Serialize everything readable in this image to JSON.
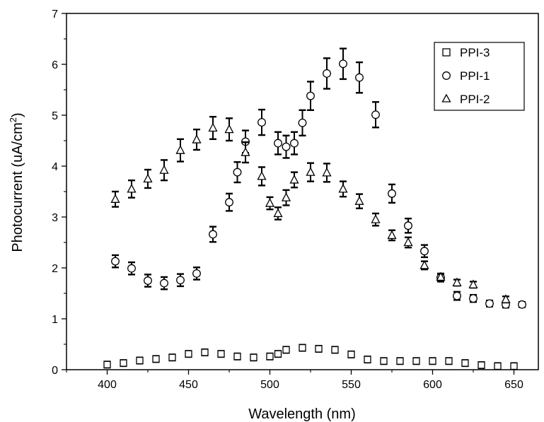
{
  "chart_data": {
    "type": "scatter",
    "xlabel": "Wavelength (nm)",
    "ylabel": "Photocurrent (uA/cm²)",
    "ylabel_parts": {
      "main": "Photocurrent (uA/cm",
      "sup": "2",
      "end": ")"
    },
    "xlim": [
      375,
      665
    ],
    "ylim": [
      0,
      7
    ],
    "xticks": [
      400,
      450,
      500,
      550,
      600,
      650
    ],
    "yticks": [
      0,
      1,
      2,
      3,
      4,
      5,
      6,
      7
    ],
    "xtick_labels": [
      "400",
      "450",
      "500",
      "550",
      "600",
      "650"
    ],
    "ytick_labels": [
      "0",
      "1",
      "2",
      "3",
      "4",
      "5",
      "6",
      "7"
    ],
    "grid": false,
    "legend_position": "top-right",
    "series": [
      {
        "name": "PPI-3",
        "marker": "square",
        "x": [
          400,
          410,
          420,
          430,
          440,
          450,
          460,
          470,
          480,
          490,
          500,
          505,
          510,
          520,
          530,
          540,
          550,
          560,
          570,
          580,
          590,
          600,
          610,
          620,
          630,
          640,
          650
        ],
        "y": [
          0.1,
          0.13,
          0.18,
          0.21,
          0.24,
          0.31,
          0.34,
          0.31,
          0.26,
          0.24,
          0.26,
          0.31,
          0.39,
          0.43,
          0.41,
          0.39,
          0.3,
          0.2,
          0.17,
          0.17,
          0.17,
          0.17,
          0.17,
          0.13,
          0.09,
          0.07,
          0.07
        ],
        "err": [
          0.06,
          0.06,
          0.06,
          0.06,
          0.06,
          0.06,
          0.06,
          0.06,
          0.06,
          0.06,
          0.06,
          0.06,
          0.06,
          0.06,
          0.06,
          0.06,
          0.06,
          0.06,
          0.06,
          0.06,
          0.06,
          0.06,
          0.06,
          0.06,
          0.06,
          0.06,
          0.06
        ]
      },
      {
        "name": "PPI-1",
        "marker": "circle",
        "x": [
          405,
          415,
          425,
          435,
          445,
          455,
          465,
          475,
          480,
          485,
          495,
          505,
          510,
          515,
          520,
          525,
          535,
          545,
          555,
          565,
          575,
          585,
          595,
          605,
          615,
          625,
          635,
          645,
          655
        ],
        "y": [
          2.13,
          1.99,
          1.75,
          1.7,
          1.76,
          1.89,
          2.66,
          3.29,
          3.88,
          4.48,
          4.86,
          4.45,
          4.38,
          4.45,
          4.85,
          5.38,
          5.82,
          6.01,
          5.74,
          5.01,
          3.46,
          2.83,
          2.33,
          1.81,
          1.45,
          1.4,
          1.3,
          1.28,
          1.28
        ],
        "err": [
          0.12,
          0.12,
          0.12,
          0.12,
          0.12,
          0.12,
          0.15,
          0.17,
          0.2,
          0.22,
          0.25,
          0.22,
          0.22,
          0.22,
          0.25,
          0.28,
          0.3,
          0.3,
          0.3,
          0.25,
          0.18,
          0.14,
          0.12,
          0.08,
          0.08,
          0.07,
          0.06,
          0.06,
          0.05
        ]
      },
      {
        "name": "PPI-2",
        "marker": "triangle",
        "x": [
          405,
          415,
          425,
          435,
          445,
          455,
          465,
          475,
          485,
          495,
          500,
          505,
          510,
          515,
          525,
          535,
          545,
          555,
          565,
          575,
          585,
          595,
          605,
          615,
          625,
          645
        ],
        "y": [
          3.35,
          3.55,
          3.75,
          3.92,
          4.31,
          4.52,
          4.75,
          4.72,
          4.27,
          3.8,
          3.27,
          3.07,
          3.38,
          3.73,
          3.88,
          3.87,
          3.55,
          3.31,
          2.95,
          2.64,
          2.5,
          2.05,
          1.82,
          1.71,
          1.67,
          1.38
        ],
        "err": [
          0.15,
          0.17,
          0.18,
          0.2,
          0.22,
          0.2,
          0.22,
          0.22,
          0.2,
          0.18,
          0.12,
          0.12,
          0.15,
          0.15,
          0.18,
          0.18,
          0.15,
          0.14,
          0.12,
          0.1,
          0.1,
          0.08,
          0.06,
          0.06,
          0.06,
          0.06
        ]
      }
    ]
  }
}
